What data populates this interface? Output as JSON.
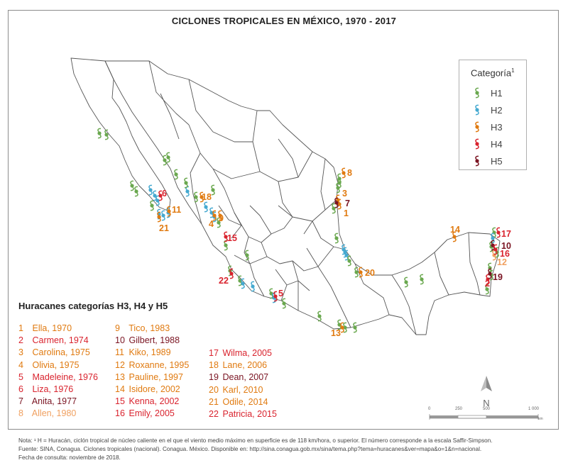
{
  "title": "CICLONES TROPICALES EN MÉXICO, 1970 - 2017",
  "colors": {
    "H1": "#6aa84f",
    "H2": "#45a9d0",
    "H3": "#e07a10",
    "H4": "#d9232e",
    "H5": "#7a1422",
    "map_outline": "#555555",
    "accent_light": "#f0a060"
  },
  "legend": {
    "title": "Categoría",
    "title_sup": "1",
    "items": [
      {
        "label": "H1",
        "category": "H1",
        "icon": "hurricane-icon"
      },
      {
        "label": "H2",
        "category": "H2",
        "icon": "hurricane-icon"
      },
      {
        "label": "H3",
        "category": "H3",
        "icon": "hurricane-icon"
      },
      {
        "label": "H4",
        "category": "H4",
        "icon": "hurricane-icon"
      },
      {
        "label": "H5",
        "category": "H5",
        "icon": "hurricane-icon"
      }
    ]
  },
  "hurricanes_heading": "Huracanes categorías H3, H4 y H5",
  "hurricanes": [
    {
      "n": "1",
      "name": "Ella, 1970",
      "category": "H3"
    },
    {
      "n": "2",
      "name": "Carmen, 1974",
      "category": "H4"
    },
    {
      "n": "3",
      "name": "Carolina, 1975",
      "category": "H3"
    },
    {
      "n": "4",
      "name": "Olivia, 1975",
      "category": "H3"
    },
    {
      "n": "5",
      "name": "Madeleine, 1976",
      "category": "H4"
    },
    {
      "n": "6",
      "name": "Liza, 1976",
      "category": "H4"
    },
    {
      "n": "7",
      "name": "Anita, 1977",
      "category": "H5"
    },
    {
      "n": "8",
      "name": "Allen, 1980",
      "category": "H3"
    },
    {
      "n": "9",
      "name": "Tico, 1983",
      "category": "H3"
    },
    {
      "n": "10",
      "name": "Gilbert, 1988",
      "category": "H5"
    },
    {
      "n": "11",
      "name": "Kiko, 1989",
      "category": "H3"
    },
    {
      "n": "12",
      "name": "Roxanne, 1995",
      "category": "H3"
    },
    {
      "n": "13",
      "name": "Pauline, 1997",
      "category": "H3"
    },
    {
      "n": "14",
      "name": "Isidore, 2002",
      "category": "H3"
    },
    {
      "n": "15",
      "name": "Kenna, 2002",
      "category": "H4"
    },
    {
      "n": "16",
      "name": "Emily, 2005",
      "category": "H4"
    },
    {
      "n": "17",
      "name": "Wilma, 2005",
      "category": "H4"
    },
    {
      "n": "18",
      "name": "Lane, 2006",
      "category": "H3"
    },
    {
      "n": "19",
      "name": "Dean, 2007",
      "category": "H5"
    },
    {
      "n": "20",
      "name": "Karl, 2010",
      "category": "H3"
    },
    {
      "n": "21",
      "name": "Odile, 2014",
      "category": "H3"
    },
    {
      "n": "22",
      "name": "Patricia, 2015",
      "category": "H4"
    }
  ],
  "north_label": "N",
  "scale": {
    "ticks": [
      "0",
      "250",
      "500",
      "1 000"
    ],
    "unit": "km"
  },
  "notes": [
    "Nota: ¹ H = Huracán, ciclón tropical de núcleo caliente en el que el viento medio máximo en superficie es de 118 km/hora, o superior. El número corresponde a la escala Saffir-Simpson.",
    "Fuente: SINA, Conagua. Ciclones tropicales (nacional). Conagua. México. Disponible en: http://sina.conagua.gob.mx/sina/tema.php?tema=huracanes&ver=mapa&o=1&n=nacional.",
    "Fecha de consulta: noviembre de 2018."
  ]
}
